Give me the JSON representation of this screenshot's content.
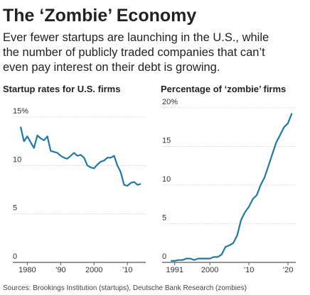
{
  "title": "The ‘Zombie’ Economy",
  "subtitle": [
    "Ever fewer startups are launching in the U.S., while",
    "the number of publicly traded companies that can’t",
    "even pay interest on their debt is growing."
  ],
  "source": "Sources: Brookings Institution (startups),  Deutsche Bank Research (zombies)",
  "chart_data": [
    {
      "type": "line",
      "title": "Startup rates for U.S. firms",
      "color": "#1f78a8",
      "grid": true,
      "x": [
        1978,
        1979,
        1980,
        1981,
        1982,
        1983,
        1984,
        1985,
        1986,
        1987,
        1988,
        1989,
        1990,
        1991,
        1992,
        1993,
        1994,
        1995,
        1996,
        1997,
        1998,
        1999,
        2000,
        2001,
        2002,
        2003,
        2004,
        2005,
        2006,
        2007,
        2008,
        2009,
        2010,
        2011,
        2012,
        2013,
        2014
      ],
      "values": [
        14,
        12.5,
        13,
        12.4,
        11.8,
        13.1,
        12.8,
        12.6,
        13,
        11.5,
        11.4,
        11.3,
        11,
        10.8,
        10.7,
        11,
        11.3,
        11,
        11.1,
        10.8,
        10,
        9.8,
        9.7,
        10.1,
        10.4,
        10.5,
        10.8,
        10.8,
        11,
        10,
        9.3,
        8,
        7.9,
        8.2,
        8.3,
        8,
        8.1
      ],
      "xlim": [
        1976.5,
        2015.5
      ],
      "xticks": [
        1980,
        {
          "value": 1990,
          "label": "’90"
        },
        2000,
        {
          "value": 2010,
          "label": "’10"
        }
      ],
      "ylim": [
        0,
        15
      ],
      "yticks": [
        0,
        5,
        10,
        {
          "value": 15,
          "label": "15%"
        }
      ]
    },
    {
      "type": "line",
      "title": "Percentage of ‘zombie’ firms",
      "color": "#1f78a8",
      "grid": true,
      "x": [
        1990,
        1991,
        1992,
        1993,
        1994,
        1995,
        1996,
        1997,
        1998,
        1999,
        2000,
        2001,
        2002,
        2003,
        2004,
        2005,
        2006,
        2007,
        2008,
        2009,
        2010,
        2011,
        2012,
        2013,
        2014,
        2015,
        2016,
        2017,
        2018,
        2019,
        2020,
        2021
      ],
      "values": [
        0.2,
        0.2,
        0.3,
        0.3,
        0.5,
        0.5,
        0.3,
        0.5,
        0.5,
        0.5,
        0.5,
        0.7,
        0.7,
        1,
        2,
        2.2,
        2.5,
        3.5,
        5.5,
        6.5,
        7.2,
        8.2,
        8.7,
        10,
        11,
        12.5,
        14,
        15.5,
        16.5,
        17.5,
        18,
        19.3
      ],
      "xlim": [
        1988.5,
        2022
      ],
      "xticks": [
        1991,
        2000,
        {
          "value": 2010,
          "label": "’10"
        },
        {
          "value": 2020,
          "label": "’20"
        }
      ],
      "ylim": [
        0,
        20
      ],
      "yticks": [
        0,
        5,
        10,
        15,
        {
          "value": 20,
          "label": "20%"
        }
      ]
    }
  ]
}
